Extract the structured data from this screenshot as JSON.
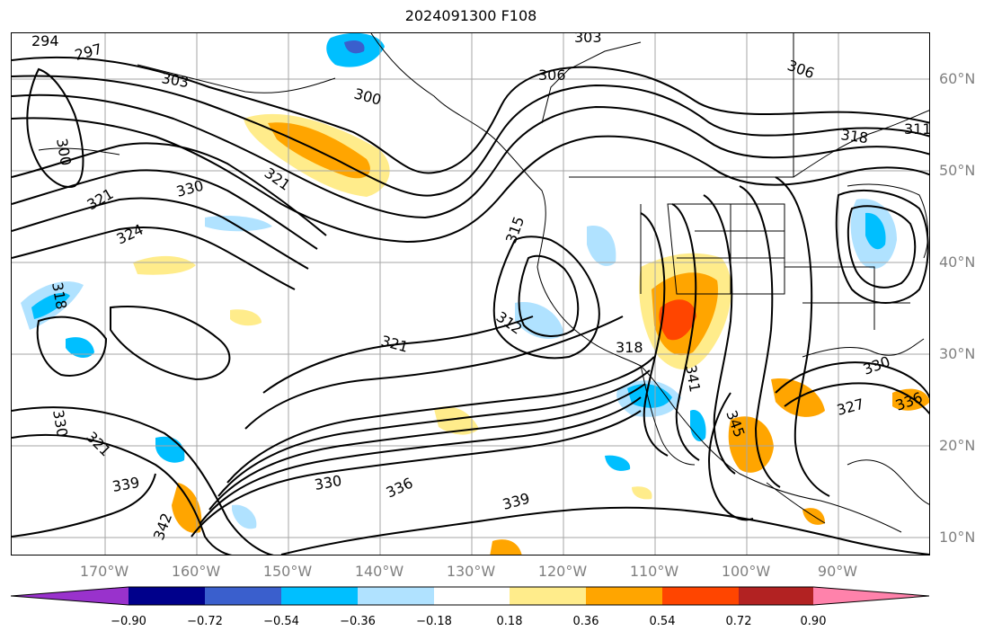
{
  "title": "2024091300 F108",
  "lat_labels": [
    "60°N",
    "50°N",
    "40°N",
    "30°N",
    "20°N",
    "10°N"
  ],
  "lon_labels": [
    "170°W",
    "160°W",
    "150°W",
    "140°W",
    "130°W",
    "120°W",
    "110°W",
    "100°W",
    "90°W"
  ],
  "colorbar": {
    "colors": [
      "#9932cc",
      "#00008b",
      "#3a5fcd",
      "#00bfff",
      "#b0e2ff",
      "#ffffff",
      "#ffec8b",
      "#ffa500",
      "#ff4500",
      "#b22222",
      "#ff82ab"
    ],
    "tick_labels": [
      "−0.90",
      "−0.72",
      "−0.54",
      "−0.36",
      "−0.18",
      "0.18",
      "0.36",
      "0.54",
      "0.72",
      "0.90"
    ]
  },
  "contour_labels": [
    "294",
    "297",
    "303",
    "300",
    "303",
    "306",
    "306",
    "311",
    "318",
    "300",
    "321",
    "330",
    "321",
    "324",
    "318",
    "315",
    "312",
    "318",
    "321",
    "341",
    "345",
    "330",
    "327",
    "336",
    "330",
    "321",
    "339",
    "330",
    "336",
    "339",
    "342"
  ]
}
